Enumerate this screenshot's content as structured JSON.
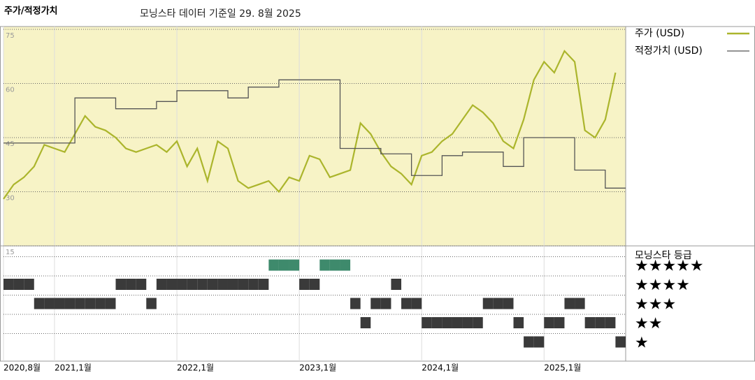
{
  "chart_data": [
    {
      "type": "line",
      "title": "주가/적정가치",
      "subtitle": "모닝스타 데이터 기준일 29. 8월 2025",
      "x": [
        "2020-08",
        "2020-09",
        "2020-10",
        "2020-11",
        "2020-12",
        "2021-01",
        "2021-02",
        "2021-03",
        "2021-04",
        "2021-05",
        "2021-06",
        "2021-07",
        "2021-08",
        "2021-09",
        "2021-10",
        "2021-11",
        "2021-12",
        "2022-01",
        "2022-02",
        "2022-03",
        "2022-04",
        "2022-05",
        "2022-06",
        "2022-07",
        "2022-08",
        "2022-09",
        "2022-10",
        "2022-11",
        "2022-12",
        "2023-01",
        "2023-02",
        "2023-03",
        "2023-04",
        "2023-05",
        "2023-06",
        "2023-07",
        "2023-08",
        "2023-09",
        "2023-10",
        "2023-11",
        "2023-12",
        "2024-01",
        "2024-02",
        "2024-03",
        "2024-04",
        "2024-05",
        "2024-06",
        "2024-07",
        "2024-08",
        "2024-09",
        "2024-10",
        "2024-11",
        "2024-12",
        "2025-01",
        "2025-02",
        "2025-03",
        "2025-04",
        "2025-05",
        "2025-06",
        "2025-07",
        "2025-08"
      ],
      "series": [
        {
          "name": "주가 (USD)",
          "color": "#abb52c",
          "values": [
            28,
            32,
            34,
            37,
            43,
            42,
            41,
            46,
            51,
            48,
            47,
            45,
            42,
            41,
            42,
            43,
            41,
            44,
            37,
            42,
            33,
            44,
            42,
            33,
            31,
            32,
            33,
            30,
            34,
            33,
            40,
            39,
            34,
            35,
            36,
            49,
            46,
            41,
            37,
            35,
            32,
            40,
            41,
            44,
            46,
            50,
            54,
            52,
            49,
            44,
            42,
            50,
            61,
            66,
            63,
            69,
            66,
            47,
            45,
            50,
            63
          ]
        },
        {
          "name": "적정가치 (USD)",
          "color": "#555555",
          "values": [
            43.5,
            43.5,
            43.5,
            43.5,
            43.5,
            43.5,
            43.5,
            56,
            56,
            56,
            56,
            53,
            53,
            53,
            53,
            55,
            55,
            58,
            58,
            58,
            58,
            58,
            56,
            56,
            59,
            59,
            59,
            61,
            61,
            61,
            61,
            61,
            61,
            42,
            42,
            42,
            42,
            40.5,
            40.5,
            40.5,
            34.5,
            34.5,
            34.5,
            40,
            40,
            41,
            41,
            41,
            41,
            37,
            37,
            45,
            45,
            45,
            45,
            45,
            36,
            36,
            36,
            31,
            31
          ]
        }
      ],
      "xlim": [
        "2020-08",
        "2025-09"
      ],
      "xticks": [
        {
          "value": "2020-08",
          "label": "2020,8월"
        },
        {
          "value": "2021-01",
          "label": "2021,1월"
        },
        {
          "value": "2022-01",
          "label": "2022,1월"
        },
        {
          "value": "2023-01",
          "label": "2023,1월"
        },
        {
          "value": "2024-01",
          "label": "2024,1월"
        },
        {
          "value": "2025-01",
          "label": "2025,1월"
        }
      ],
      "ylim": [
        15,
        75
      ],
      "yticks": [
        15,
        30,
        45,
        60,
        75
      ],
      "grid": true,
      "background": "#f7f3c6"
    },
    {
      "type": "rating",
      "title": "모닝스타 등급",
      "color": "#3a3a3a",
      "top_color": "#3e8a6c",
      "x": [
        "2020-08",
        "2020-09",
        "2020-10",
        "2020-11",
        "2020-12",
        "2021-01",
        "2021-02",
        "2021-03",
        "2021-04",
        "2021-05",
        "2021-06",
        "2021-07",
        "2021-08",
        "2021-09",
        "2021-10",
        "2021-11",
        "2021-12",
        "2022-01",
        "2022-02",
        "2022-03",
        "2022-04",
        "2022-05",
        "2022-06",
        "2022-07",
        "2022-08",
        "2022-09",
        "2022-10",
        "2022-11",
        "2022-12",
        "2023-01",
        "2023-02",
        "2023-03",
        "2023-04",
        "2023-05",
        "2023-06",
        "2023-07",
        "2023-08",
        "2023-09",
        "2023-10",
        "2023-11",
        "2023-12",
        "2024-01",
        "2024-02",
        "2024-03",
        "2024-04",
        "2024-05",
        "2024-06",
        "2024-07",
        "2024-08",
        "2024-09",
        "2024-10",
        "2024-11",
        "2024-12",
        "2025-01",
        "2025-02",
        "2025-03",
        "2025-04",
        "2025-05",
        "2025-06",
        "2025-07",
        "2025-08"
      ],
      "values": [
        4,
        4,
        4,
        3,
        3,
        3,
        3,
        3,
        3,
        3,
        3,
        4,
        4,
        4,
        3,
        4,
        4,
        4,
        4,
        4,
        4,
        4,
        4,
        4,
        4,
        4,
        5,
        5,
        5,
        4,
        4,
        5,
        5,
        5,
        3,
        2,
        3,
        3,
        4,
        3,
        3,
        2,
        2,
        2,
        2,
        2,
        2,
        3,
        3,
        3,
        2,
        1,
        1,
        2,
        2,
        3,
        3,
        2,
        2,
        2,
        1
      ],
      "ylim": [
        0,
        6
      ],
      "yticks": [
        {
          "value": 5,
          "label": "★★★★★"
        },
        {
          "value": 4,
          "label": "★★★★"
        },
        {
          "value": 3,
          "label": "★★★"
        },
        {
          "value": 2,
          "label": "★★"
        },
        {
          "value": 1,
          "label": "★"
        }
      ]
    }
  ]
}
